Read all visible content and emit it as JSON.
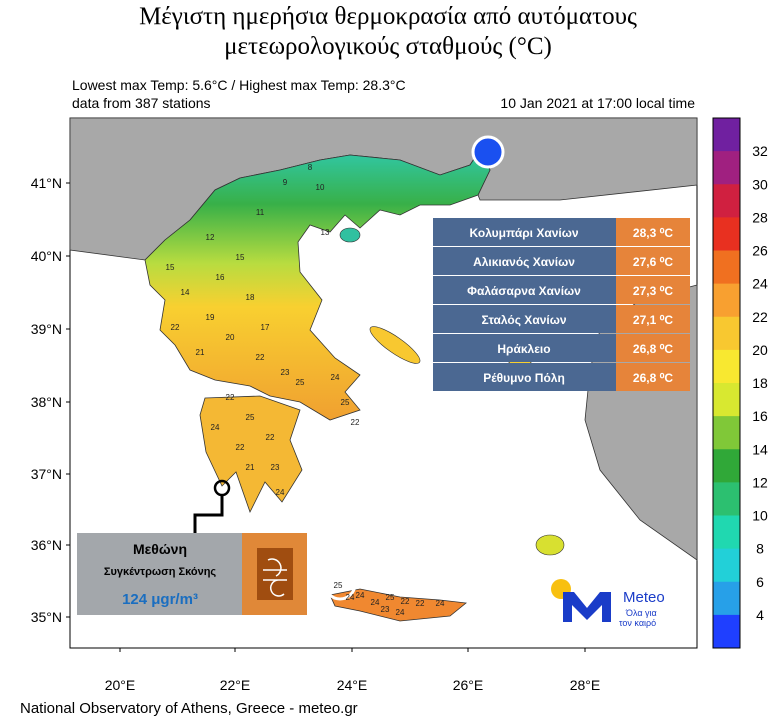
{
  "header": {
    "title_lines": [
      "Μέγιστη ημερήσια θερμοκρασία από αυτόματους",
      "μετεωρολογικούς σταθμούς (°C)"
    ],
    "stats": "Lowest max Temp: 5.6°C / Highest max Temp: 28.3°C",
    "stations": "data from 387 stations",
    "time": "10 Jan 2021 at 17:00 local time"
  },
  "axes": {
    "latitudes": [
      "41°N",
      "40°N",
      "39°N",
      "38°N",
      "37°N",
      "36°N",
      "35°N"
    ],
    "longitudes": [
      "20°E",
      "22°E",
      "24°E",
      "26°E",
      "28°E"
    ]
  },
  "colorbar": {
    "labels": [
      "32",
      "30",
      "28",
      "26",
      "24",
      "22",
      "20",
      "18",
      "16",
      "14",
      "12",
      "10",
      "8",
      "6",
      "4"
    ]
  },
  "table": {
    "rows": [
      [
        "Κολυμπάρι Χανίων",
        "28,3 ⁰C"
      ],
      [
        "Αλικιανός Χανίων",
        "27,6 ⁰C"
      ],
      [
        "Φαλάσαρνα Χανίων",
        "27,3 ⁰C"
      ],
      [
        "Σταλός Χανίων",
        "27,1 ⁰C"
      ],
      [
        "Ηράκλειο",
        "26,8 ⁰C"
      ],
      [
        "Ρέθυμνο Πόλη",
        "26,8 ⁰C"
      ]
    ]
  },
  "inset": {
    "station": "Μεθώνη",
    "label": "Συγκέντρωση Σκόνης",
    "value": "124 μgr/m³"
  },
  "logo": {
    "name": "Meteo",
    "tagline_lines": [
      "Όλα για",
      "τον καιρό"
    ]
  },
  "stations": [
    "9",
    "10",
    "8",
    "11",
    "13",
    "12",
    "15",
    "14",
    "16",
    "15",
    "18",
    "17",
    "19",
    "20",
    "22",
    "21",
    "22",
    "23",
    "25",
    "24",
    "22",
    "25",
    "24",
    "22",
    "21",
    "22",
    "23",
    "24",
    "25",
    "22",
    "24",
    "24",
    "25",
    "22",
    "22",
    "24",
    "23",
    "24",
    "25",
    "24"
  ],
  "footer": "National Observatory of Athens, Greece - meteo.gr"
}
